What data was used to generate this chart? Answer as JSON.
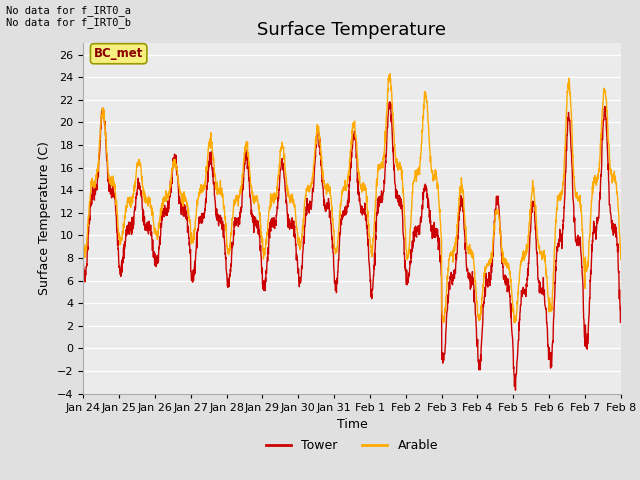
{
  "title": "Surface Temperature",
  "xlabel": "Time",
  "ylabel": "Surface Temperature (C)",
  "text_top_left": "No data for f_IRT0_a\nNo data for f_IRT0_b",
  "legend_label": "BC_met",
  "ylim": [
    -4,
    27
  ],
  "yticks": [
    -4,
    -2,
    0,
    2,
    4,
    6,
    8,
    10,
    12,
    14,
    16,
    18,
    20,
    22,
    24,
    26
  ],
  "xtick_labels": [
    "Jan 24",
    "Jan 25",
    "Jan 26",
    "Jan 27",
    "Jan 28",
    "Jan 29",
    "Jan 30",
    "Jan 31",
    "Feb 1",
    "Feb 2",
    "Feb 3",
    "Feb 4",
    "Feb 5",
    "Feb 6",
    "Feb 7",
    "Feb 8"
  ],
  "background_color": "#e0e0e0",
  "plot_bg_color": "#ebebeb",
  "line_tower_color": "#cc0000",
  "line_arable_color": "#ffaa00",
  "line_width": 1.0,
  "title_fontsize": 13,
  "axis_fontsize": 9,
  "tick_fontsize": 8,
  "n_days": 15,
  "points_per_day": 144,
  "tower_mins": [
    6.5,
    7.0,
    7.5,
    6.0,
    5.5,
    5.5,
    6.0,
    5.5,
    5.0,
    6.0,
    -1.0,
    -1.5,
    -2.8,
    -1.2,
    0.5,
    4.0
  ],
  "tower_maxs": [
    21.0,
    14.5,
    17.0,
    17.0,
    17.0,
    16.5,
    19.0,
    19.0,
    21.5,
    14.5,
    13.5,
    13.5,
    13.0,
    20.5,
    21.0,
    5.0
  ],
  "arable_mins": [
    8.5,
    9.5,
    10.0,
    9.5,
    8.5,
    8.5,
    9.0,
    8.5,
    8.5,
    8.0,
    2.5,
    2.5,
    2.5,
    3.5,
    7.0,
    7.5
  ],
  "arable_maxs": [
    21.0,
    16.5,
    16.5,
    18.5,
    18.0,
    18.0,
    19.5,
    20.0,
    24.0,
    22.5,
    14.5,
    12.5,
    14.0,
    23.5,
    23.0,
    9.0
  ],
  "peak_sharpness": 3.5
}
